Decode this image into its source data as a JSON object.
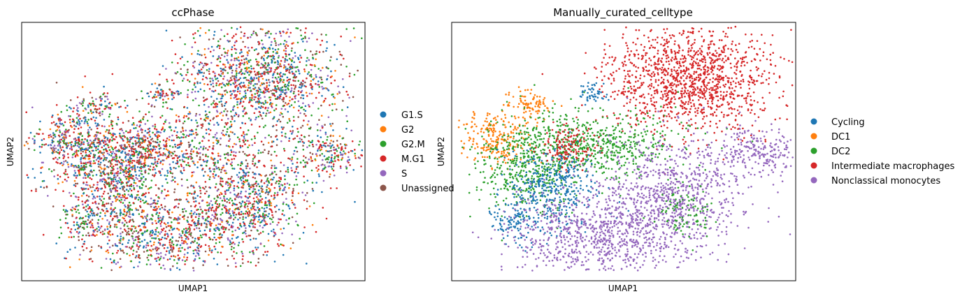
{
  "figure": {
    "panels": [
      {
        "title": "ccPhase",
        "xlabel": "UMAP1",
        "ylabel": "UMAP2",
        "legend": [
          {
            "label": "G1.S",
            "color": "#1f77b4"
          },
          {
            "label": "G2",
            "color": "#ff7f0e"
          },
          {
            "label": "G2.M",
            "color": "#2ca02c"
          },
          {
            "label": "M.G1",
            "color": "#d62728"
          },
          {
            "label": "S",
            "color": "#9467bd"
          },
          {
            "label": "Unassigned",
            "color": "#8c564b"
          }
        ]
      },
      {
        "title": "Manually_curated_celltype",
        "xlabel": "UMAP1",
        "ylabel": "UMAP2",
        "legend": [
          {
            "label": "Cycling",
            "color": "#1f77b4"
          },
          {
            "label": "DC1",
            "color": "#ff7f0e"
          },
          {
            "label": "DC2",
            "color": "#2ca02c"
          },
          {
            "label": "Intermediate macrophages",
            "color": "#d62728"
          },
          {
            "label": "Nonclassical monocytes",
            "color": "#9467bd"
          }
        ]
      }
    ]
  },
  "chart_data": [
    {
      "type": "scatter",
      "title": "ccPhase",
      "xlabel": "UMAP1",
      "ylabel": "UMAP2",
      "grid": false,
      "ticks": false,
      "legend_position": "right-outside",
      "series": [
        {
          "name": "G1.S",
          "color": "#1f77b4"
        },
        {
          "name": "G2",
          "color": "#ff7f0e"
        },
        {
          "name": "G2.M",
          "color": "#2ca02c"
        },
        {
          "name": "M.G1",
          "color": "#d62728"
        },
        {
          "name": "S",
          "color": "#9467bd"
        },
        {
          "name": "Unassigned",
          "color": "#8c564b"
        }
      ],
      "composition_weights": [
        0.18,
        0.08,
        0.18,
        0.27,
        0.14,
        0.15
      ]
    },
    {
      "type": "scatter",
      "title": "Manually_curated_celltype",
      "xlabel": "UMAP1",
      "ylabel": "UMAP2",
      "grid": false,
      "ticks": false,
      "legend_position": "right-outside",
      "series": [
        {
          "name": "Cycling",
          "color": "#1f77b4"
        },
        {
          "name": "DC1",
          "color": "#ff7f0e"
        },
        {
          "name": "DC2",
          "color": "#2ca02c"
        },
        {
          "name": "Intermediate macrophages",
          "color": "#d62728"
        },
        {
          "name": "Nonclassical monocytes",
          "color": "#9467bd"
        }
      ]
    }
  ]
}
